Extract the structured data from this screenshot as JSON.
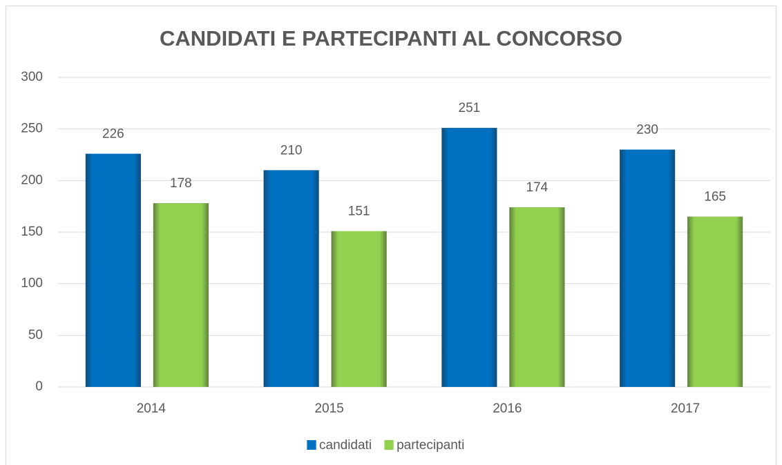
{
  "chart_data": {
    "type": "bar",
    "title": "CANDIDATI E PARTECIPANTI AL CONCORSO",
    "categories": [
      "2014",
      "2015",
      "2016",
      "2017"
    ],
    "series": [
      {
        "name": "candidati",
        "color": "#0070c0",
        "values": [
          226,
          210,
          251,
          230
        ]
      },
      {
        "name": "partecipanti",
        "color": "#92d050",
        "values": [
          178,
          151,
          174,
          165
        ]
      }
    ],
    "ylim": [
      0,
      300
    ],
    "yticks": [
      0,
      50,
      100,
      150,
      200,
      250,
      300
    ],
    "grid": true,
    "legend": "bottom"
  }
}
